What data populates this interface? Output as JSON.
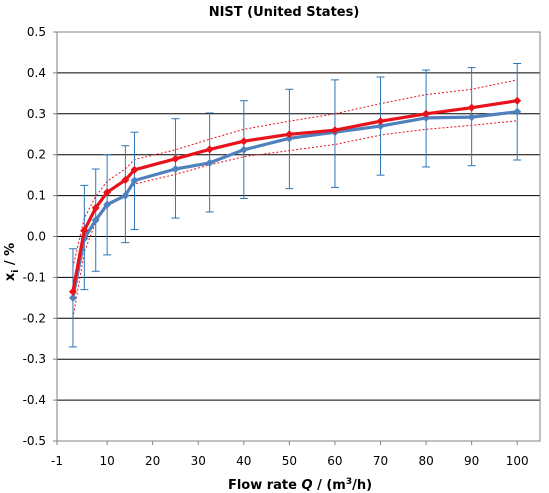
{
  "chart_data": {
    "type": "line",
    "title": "NIST (United States)",
    "xlabel": {
      "prefix": "Flow rate ",
      "var": "Q",
      "middle": " / (m",
      "sup": "3",
      "suffix": "/h)"
    },
    "ylabel": {
      "var": "x",
      "sub": "i",
      "suffix": " / %"
    },
    "xlim": [
      -1,
      105
    ],
    "ylim": [
      -0.5,
      0.5
    ],
    "x_ticks": [
      -1,
      10,
      20,
      30,
      40,
      50,
      60,
      70,
      80,
      90,
      100
    ],
    "y_ticks": [
      -0.5,
      -0.4,
      -0.3,
      -0.2,
      -0.1,
      0.0,
      0.1,
      0.2,
      0.3,
      0.4,
      0.5
    ],
    "x_tick_labels": [
      "-1",
      "10",
      "20",
      "30",
      "40",
      "50",
      "60",
      "70",
      "80",
      "90",
      "100"
    ],
    "y_tick_labels": [
      "-0.5",
      "-0.4",
      "-0.3",
      "-0.2",
      "-0.1",
      "0.0",
      "0.1",
      "0.2",
      "0.3",
      "0.4",
      "0.5"
    ],
    "grid": "horizontal",
    "colors": {
      "red": "#e8121b",
      "blue": "#4f81bd",
      "error_bar": "#2e75b6",
      "grid": "#000000"
    },
    "series": [
      {
        "x": [
          2.5,
          5,
          7.5,
          10,
          14,
          16,
          25,
          32.5,
          40,
          50,
          60,
          70,
          80,
          90,
          100
        ],
        "values": [
          -0.135,
          0.015,
          0.07,
          0.108,
          0.138,
          0.163,
          0.19,
          0.213,
          0.233,
          0.25,
          0.26,
          0.282,
          0.3,
          0.315,
          0.332
        ],
        "marker": "diamond",
        "color": "#e8121b"
      },
      {
        "x": [
          2.5,
          5,
          7.5,
          10,
          14,
          16,
          25,
          32.5,
          40,
          50,
          60,
          70,
          80,
          90,
          100
        ],
        "values": [
          -0.15,
          -0.005,
          0.04,
          0.078,
          0.1,
          0.137,
          0.165,
          0.18,
          0.212,
          0.24,
          0.255,
          0.27,
          0.29,
          0.292,
          0.305
        ],
        "error_low": [
          -0.27,
          -0.13,
          -0.085,
          -0.045,
          -0.015,
          0.017,
          0.045,
          0.06,
          0.093,
          0.117,
          0.12,
          0.15,
          0.17,
          0.173,
          0.187
        ],
        "error_high": [
          -0.03,
          0.125,
          0.165,
          0.2,
          0.222,
          0.255,
          0.288,
          0.302,
          0.332,
          0.36,
          0.383,
          0.39,
          0.407,
          0.413,
          0.423
        ],
        "marker": "diamond",
        "color": "#4f81bd"
      }
    ],
    "bands": [
      {
        "x": [
          2.5,
          5,
          7.5,
          10,
          14,
          16,
          25,
          32.5,
          40,
          50,
          60,
          70,
          80,
          90,
          100
        ],
        "values": [
          -0.075,
          0.045,
          0.098,
          0.135,
          0.165,
          0.188,
          0.212,
          0.238,
          0.262,
          0.282,
          0.3,
          0.325,
          0.347,
          0.36,
          0.383
        ],
        "style": "dotted",
        "color": "#e8121b"
      },
      {
        "x": [
          2.5,
          5,
          7.5,
          10,
          14,
          16,
          25,
          32.5,
          40,
          50,
          60,
          70,
          80,
          90,
          100
        ],
        "values": [
          -0.2,
          -0.038,
          0.035,
          0.073,
          0.1,
          0.128,
          0.152,
          0.175,
          0.195,
          0.21,
          0.225,
          0.248,
          0.262,
          0.272,
          0.283
        ],
        "style": "dotted",
        "color": "#e8121b"
      }
    ]
  }
}
